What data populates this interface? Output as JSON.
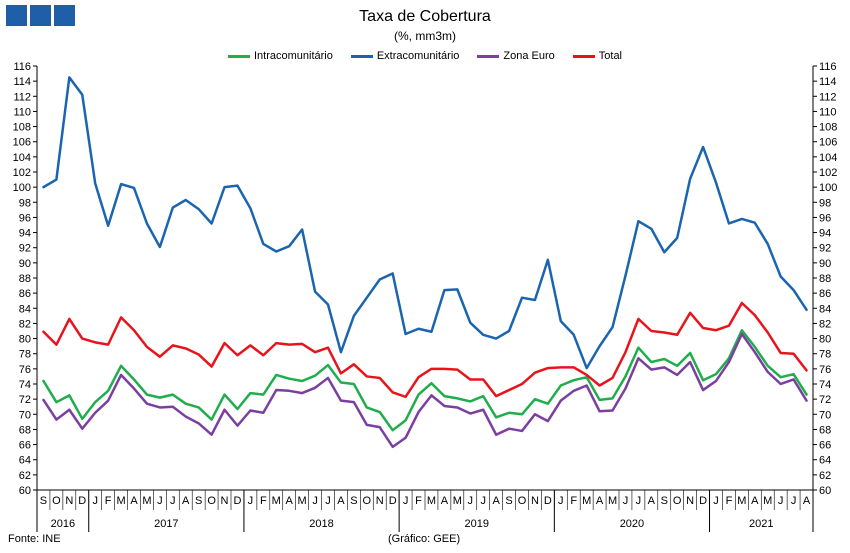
{
  "header": {
    "title": "Taxa de Cobertura",
    "subtitle": "(%, mm3m)",
    "logo_color": "#1f5fa8"
  },
  "footer": {
    "source": "Fonte: INE",
    "credit": "(Gráfico: GEE)"
  },
  "chart_data": {
    "type": "line",
    "title": "Taxa de Cobertura",
    "subtitle": "(%, mm3m)",
    "ylim": [
      60,
      116
    ],
    "yticks": [
      60,
      62,
      64,
      66,
      68,
      70,
      72,
      74,
      76,
      78,
      80,
      82,
      84,
      86,
      88,
      90,
      92,
      94,
      96,
      98,
      100,
      102,
      104,
      106,
      108,
      110,
      112,
      114,
      116
    ],
    "grid": false,
    "legend_position": "top-center",
    "x": [
      "S",
      "O",
      "N",
      "D",
      "J",
      "F",
      "M",
      "A",
      "M",
      "J",
      "J",
      "A",
      "S",
      "O",
      "N",
      "D",
      "J",
      "F",
      "M",
      "A",
      "M",
      "J",
      "J",
      "A",
      "S",
      "O",
      "N",
      "D",
      "J",
      "F",
      "M",
      "A",
      "M",
      "J",
      "J",
      "A",
      "S",
      "O",
      "N",
      "D",
      "J",
      "F",
      "M",
      "A",
      "M",
      "J",
      "J",
      "A",
      "S",
      "O",
      "N",
      "D",
      "J",
      "F",
      "M",
      "A",
      "M",
      "J",
      "J",
      "A"
    ],
    "years": [
      {
        "label": "2016",
        "start": 0,
        "count": 4
      },
      {
        "label": "2017",
        "start": 4,
        "count": 12
      },
      {
        "label": "2018",
        "start": 16,
        "count": 12
      },
      {
        "label": "2019",
        "start": 28,
        "count": 12
      },
      {
        "label": "2020",
        "start": 40,
        "count": 12
      },
      {
        "label": "2021",
        "start": 52,
        "count": 8
      }
    ],
    "series": [
      {
        "name": "Intracomunitário",
        "color": "#1fae4b",
        "values": [
          74.4,
          71.6,
          72.5,
          69.4,
          71.6,
          73.1,
          76.4,
          74.6,
          72.6,
          72.2,
          72.6,
          71.4,
          70.9,
          69.3,
          72.6,
          70.7,
          72.8,
          72.6,
          75.2,
          74.7,
          74.4,
          75.1,
          76.5,
          74.2,
          74.0,
          70.9,
          70.3,
          67.9,
          69.2,
          72.6,
          74.1,
          72.4,
          72.1,
          71.7,
          72.4,
          69.6,
          70.2,
          70.0,
          72.0,
          71.4,
          73.8,
          74.5,
          74.9,
          71.9,
          72.1,
          75.0,
          78.8,
          76.9,
          77.3,
          76.4,
          78.1,
          74.5,
          75.3,
          77.4,
          81.1,
          78.9,
          76.4,
          74.9,
          75.3,
          72.6
        ]
      },
      {
        "name": "Extracomunitário",
        "color": "#1b65b0",
        "values": [
          100.0,
          101.0,
          114.5,
          112.2,
          100.5,
          94.9,
          100.4,
          99.9,
          95.2,
          92.1,
          97.3,
          98.3,
          97.1,
          95.2,
          100.0,
          100.2,
          97.2,
          92.5,
          91.5,
          92.2,
          94.4,
          86.2,
          84.5,
          78.2,
          83.0,
          85.4,
          87.8,
          88.6,
          80.6,
          81.3,
          80.9,
          86.4,
          86.5,
          82.1,
          80.5,
          80.0,
          81.0,
          85.4,
          85.1,
          90.4,
          82.3,
          80.5,
          76.1,
          79.0,
          81.5,
          88.3,
          95.5,
          94.5,
          91.4,
          93.3,
          101.1,
          105.3,
          100.6,
          95.2,
          95.8,
          95.3,
          92.5,
          88.2,
          86.4,
          83.8
        ]
      },
      {
        "name": "Zona Euro",
        "color": "#7b3fa0",
        "values": [
          71.9,
          69.3,
          70.6,
          68.1,
          70.2,
          71.8,
          75.2,
          73.4,
          71.4,
          70.9,
          71.0,
          69.7,
          68.8,
          67.3,
          70.6,
          68.5,
          70.5,
          70.2,
          73.2,
          73.1,
          72.8,
          73.5,
          74.8,
          71.8,
          71.6,
          68.6,
          68.3,
          65.7,
          66.9,
          70.3,
          72.5,
          71.1,
          70.9,
          70.1,
          70.6,
          67.3,
          68.1,
          67.8,
          70.0,
          69.1,
          71.8,
          73.1,
          73.8,
          70.4,
          70.5,
          73.4,
          77.4,
          75.9,
          76.2,
          75.2,
          76.9,
          73.2,
          74.4,
          76.9,
          80.6,
          78.2,
          75.6,
          74.0,
          74.6,
          71.8
        ]
      },
      {
        "name": "Total",
        "color": "#e8141c",
        "values": [
          80.9,
          79.2,
          82.6,
          80.0,
          79.5,
          79.2,
          82.8,
          81.1,
          78.9,
          77.6,
          79.1,
          78.7,
          77.9,
          76.3,
          79.4,
          77.8,
          79.1,
          77.8,
          79.4,
          79.2,
          79.3,
          78.2,
          78.8,
          75.4,
          76.6,
          75.0,
          74.8,
          72.9,
          72.3,
          74.9,
          76.0,
          76.0,
          75.9,
          74.6,
          74.6,
          72.4,
          73.2,
          74.0,
          75.5,
          76.1,
          76.2,
          76.2,
          75.2,
          73.8,
          74.8,
          78.2,
          82.6,
          81.0,
          80.8,
          80.5,
          83.4,
          81.4,
          81.1,
          81.7,
          84.7,
          83.1,
          80.8,
          78.1,
          78.0,
          75.8
        ]
      }
    ]
  }
}
